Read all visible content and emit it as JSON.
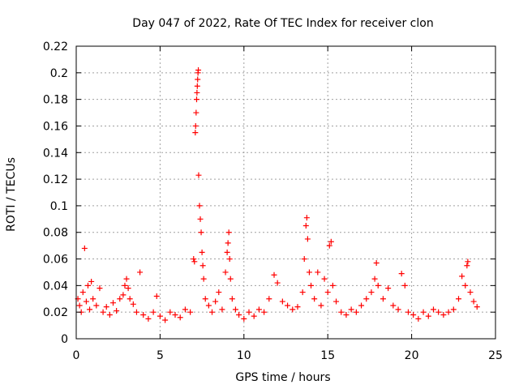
{
  "chart_data": {
    "type": "scatter",
    "title": "Day 047 of 2022, Rate Of TEC Index for receiver clon",
    "xlabel": "GPS time / hours",
    "ylabel": "ROTI / TECUs",
    "xlim": [
      0,
      25
    ],
    "ylim": [
      0,
      0.22
    ],
    "xticks": [
      0,
      5,
      10,
      15,
      20,
      25
    ],
    "yticks": [
      0,
      0.02,
      0.04,
      0.06,
      0.08,
      0.1,
      0.12,
      0.14,
      0.16,
      0.18,
      0.2,
      0.22
    ],
    "xtick_labels": [
      "0",
      "5",
      "10",
      "15",
      "20",
      "25"
    ],
    "ytick_labels": [
      "0",
      "0.02",
      "0.04",
      "0.06",
      "0.08",
      "0.1",
      "0.12",
      "0.14",
      "0.16",
      "0.18",
      "0.2",
      "0.22"
    ],
    "grid": true,
    "marker": "+",
    "color": "#ff0000",
    "series": [
      {
        "points": [
          [
            0.1,
            0.03
          ],
          [
            0.2,
            0.025
          ],
          [
            0.3,
            0.02
          ],
          [
            0.4,
            0.035
          ],
          [
            0.5,
            0.068
          ],
          [
            0.6,
            0.028
          ],
          [
            0.7,
            0.04
          ],
          [
            0.8,
            0.022
          ],
          [
            0.9,
            0.043
          ],
          [
            1.0,
            0.03
          ],
          [
            1.2,
            0.025
          ],
          [
            1.4,
            0.038
          ],
          [
            1.6,
            0.02
          ],
          [
            1.8,
            0.024
          ],
          [
            2.0,
            0.018
          ],
          [
            2.2,
            0.027
          ],
          [
            2.4,
            0.021
          ],
          [
            2.6,
            0.03
          ],
          [
            2.8,
            0.033
          ],
          [
            2.9,
            0.04
          ],
          [
            3.0,
            0.045
          ],
          [
            3.1,
            0.038
          ],
          [
            3.2,
            0.03
          ],
          [
            3.4,
            0.026
          ],
          [
            3.6,
            0.02
          ],
          [
            3.8,
            0.05
          ],
          [
            4.0,
            0.018
          ],
          [
            4.3,
            0.015
          ],
          [
            4.6,
            0.02
          ],
          [
            4.8,
            0.032
          ],
          [
            5.0,
            0.017
          ],
          [
            5.3,
            0.014
          ],
          [
            5.6,
            0.02
          ],
          [
            5.9,
            0.018
          ],
          [
            6.2,
            0.016
          ],
          [
            6.5,
            0.022
          ],
          [
            6.8,
            0.02
          ],
          [
            7.0,
            0.06
          ],
          [
            7.05,
            0.058
          ],
          [
            7.1,
            0.155
          ],
          [
            7.12,
            0.16
          ],
          [
            7.15,
            0.17
          ],
          [
            7.18,
            0.18
          ],
          [
            7.2,
            0.185
          ],
          [
            7.22,
            0.19
          ],
          [
            7.24,
            0.195
          ],
          [
            7.26,
            0.2
          ],
          [
            7.28,
            0.202
          ],
          [
            7.3,
            0.123
          ],
          [
            7.35,
            0.1
          ],
          [
            7.4,
            0.09
          ],
          [
            7.45,
            0.08
          ],
          [
            7.5,
            0.065
          ],
          [
            7.55,
            0.055
          ],
          [
            7.6,
            0.045
          ],
          [
            7.7,
            0.03
          ],
          [
            7.9,
            0.025
          ],
          [
            8.1,
            0.02
          ],
          [
            8.3,
            0.028
          ],
          [
            8.5,
            0.035
          ],
          [
            8.7,
            0.022
          ],
          [
            8.9,
            0.05
          ],
          [
            9.0,
            0.065
          ],
          [
            9.05,
            0.072
          ],
          [
            9.1,
            0.08
          ],
          [
            9.15,
            0.06
          ],
          [
            9.2,
            0.045
          ],
          [
            9.3,
            0.03
          ],
          [
            9.5,
            0.022
          ],
          [
            9.7,
            0.018
          ],
          [
            10.0,
            0.015
          ],
          [
            10.3,
            0.02
          ],
          [
            10.6,
            0.017
          ],
          [
            10.9,
            0.022
          ],
          [
            11.2,
            0.02
          ],
          [
            11.5,
            0.03
          ],
          [
            11.8,
            0.048
          ],
          [
            12.0,
            0.042
          ],
          [
            12.3,
            0.028
          ],
          [
            12.6,
            0.025
          ],
          [
            12.9,
            0.022
          ],
          [
            13.2,
            0.024
          ],
          [
            13.5,
            0.035
          ],
          [
            13.6,
            0.06
          ],
          [
            13.7,
            0.085
          ],
          [
            13.75,
            0.091
          ],
          [
            13.8,
            0.075
          ],
          [
            13.9,
            0.05
          ],
          [
            14.0,
            0.04
          ],
          [
            14.2,
            0.03
          ],
          [
            14.4,
            0.05
          ],
          [
            14.6,
            0.025
          ],
          [
            14.8,
            0.045
          ],
          [
            15.0,
            0.035
          ],
          [
            15.1,
            0.07
          ],
          [
            15.2,
            0.073
          ],
          [
            15.3,
            0.04
          ],
          [
            15.5,
            0.028
          ],
          [
            15.8,
            0.02
          ],
          [
            16.1,
            0.018
          ],
          [
            16.4,
            0.022
          ],
          [
            16.7,
            0.02
          ],
          [
            17.0,
            0.025
          ],
          [
            17.3,
            0.03
          ],
          [
            17.6,
            0.035
          ],
          [
            17.8,
            0.045
          ],
          [
            17.9,
            0.057
          ],
          [
            18.0,
            0.04
          ],
          [
            18.3,
            0.03
          ],
          [
            18.6,
            0.038
          ],
          [
            18.9,
            0.025
          ],
          [
            19.2,
            0.022
          ],
          [
            19.4,
            0.049
          ],
          [
            19.6,
            0.04
          ],
          [
            19.8,
            0.02
          ],
          [
            20.1,
            0.018
          ],
          [
            20.4,
            0.015
          ],
          [
            20.7,
            0.02
          ],
          [
            21.0,
            0.017
          ],
          [
            21.3,
            0.022
          ],
          [
            21.6,
            0.02
          ],
          [
            21.9,
            0.018
          ],
          [
            22.2,
            0.02
          ],
          [
            22.5,
            0.022
          ],
          [
            22.8,
            0.03
          ],
          [
            23.0,
            0.047
          ],
          [
            23.2,
            0.04
          ],
          [
            23.3,
            0.055
          ],
          [
            23.35,
            0.058
          ],
          [
            23.5,
            0.035
          ],
          [
            23.7,
            0.028
          ],
          [
            23.9,
            0.024
          ]
        ]
      }
    ]
  }
}
